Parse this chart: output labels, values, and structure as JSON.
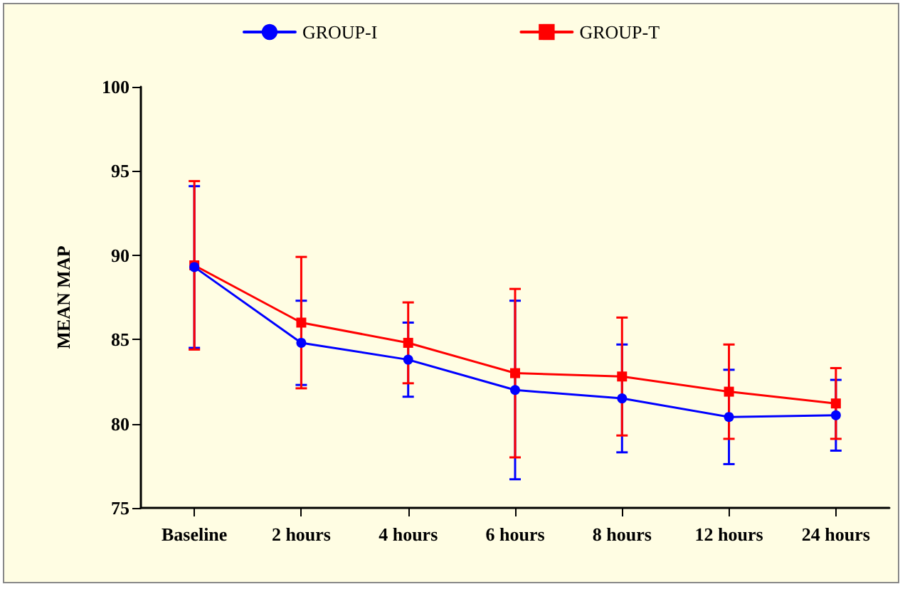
{
  "chart_data": {
    "type": "line",
    "ylabel": "MEAN MAP",
    "categories": [
      "Baseline",
      "2 hours",
      "4 hours",
      "6 hours",
      "8 hours",
      "12 hours",
      "24 hours"
    ],
    "series": [
      {
        "name": "GROUP-I",
        "color": "#0000ff",
        "marker": "circle",
        "values": [
          89.3,
          84.8,
          83.8,
          82.0,
          81.5,
          80.4,
          80.5
        ],
        "errors": [
          4.8,
          2.5,
          2.2,
          5.3,
          3.2,
          2.8,
          2.1
        ]
      },
      {
        "name": "GROUP-T",
        "color": "#ff0000",
        "marker": "square",
        "values": [
          89.4,
          86.0,
          84.8,
          83.0,
          82.8,
          81.9,
          81.2
        ],
        "errors": [
          5.0,
          3.9,
          2.4,
          5.0,
          3.5,
          2.8,
          2.1
        ]
      }
    ],
    "ylim": [
      75,
      100
    ],
    "yticks": [
      75,
      80,
      85,
      90,
      95,
      100
    ],
    "grid": false,
    "legend": "top",
    "line_style": "solid"
  }
}
